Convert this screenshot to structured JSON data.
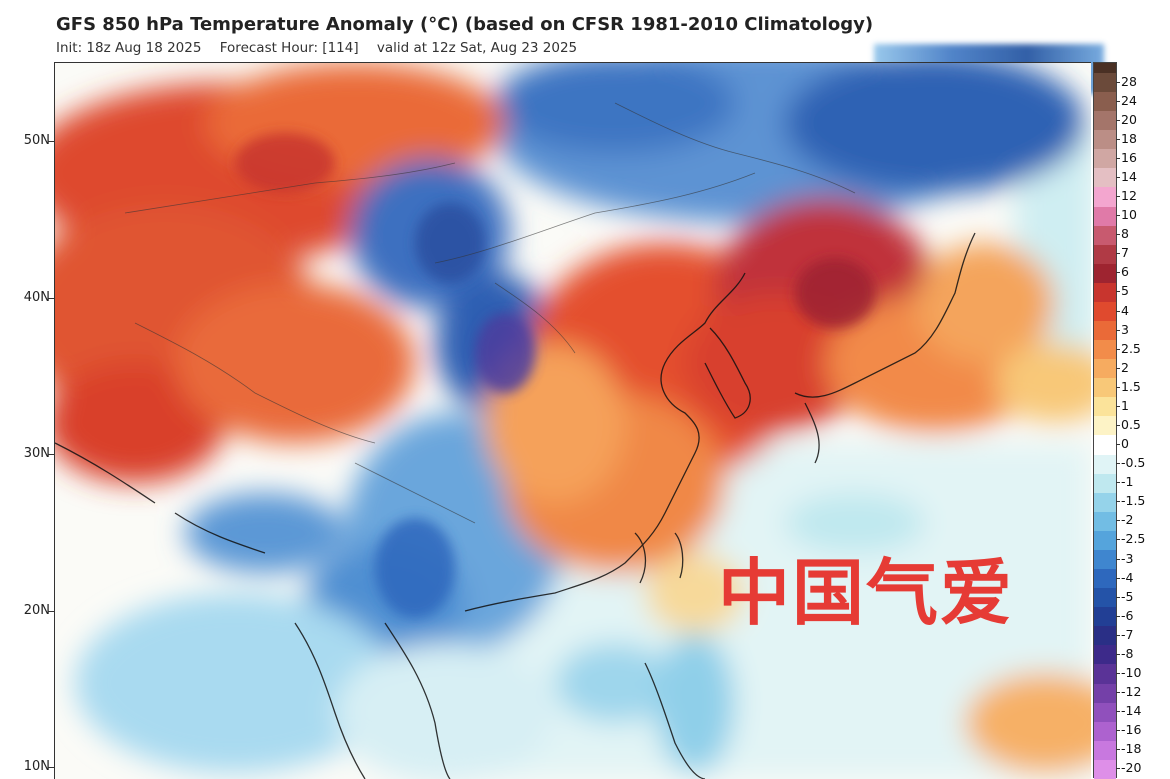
{
  "header": {
    "title": "GFS 850 hPa Temperature Anomaly (°C) (based on CFSR 1981-2010 Climatology)",
    "init": "Init: 18z Aug 18 2025",
    "forecast_hour": "Forecast Hour: [114]",
    "valid": "valid at 12z Sat, Aug 23 2025"
  },
  "map": {
    "lat_labels": [
      "50N",
      "40N",
      "30N",
      "20N",
      "10N"
    ],
    "watermark": "中国气爱"
  },
  "colorbar": {
    "labels": [
      "28",
      "24",
      "20",
      "18",
      "16",
      "14",
      "12",
      "10",
      "8",
      "7",
      "6",
      "5",
      "4",
      "3",
      "2.5",
      "2",
      "1.5",
      "1",
      "0.5",
      "0",
      "-0.5",
      "-1",
      "-1.5",
      "-2",
      "-2.5",
      "-3",
      "-4",
      "-5",
      "-6",
      "-7",
      "-8",
      "-10",
      "-12",
      "-14",
      "-16",
      "-18",
      "-20"
    ],
    "colors": [
      "#6b4a3a",
      "#8a5e4e",
      "#a4756a",
      "#bb8e86",
      "#d0a7a3",
      "#e4bfc3",
      "#f3a6cf",
      "#e07aa8",
      "#c85a6f",
      "#b03a45",
      "#9e2430",
      "#c8352e",
      "#e04a2e",
      "#ea6a38",
      "#f28c4a",
      "#f6ab60",
      "#f8c878",
      "#fbe39a",
      "#fdf3c6",
      "#ffffff",
      "#e0f4f6",
      "#bfe8ef",
      "#95d3ea",
      "#72bde4",
      "#55a4dc",
      "#3f86cf",
      "#2e68bd",
      "#2453a8",
      "#223f95",
      "#2a2f86",
      "#3d2a8a",
      "#5a3397",
      "#7440a8",
      "#9050bc",
      "#ad62cf",
      "#c878df",
      "#de8fe8"
    ]
  }
}
